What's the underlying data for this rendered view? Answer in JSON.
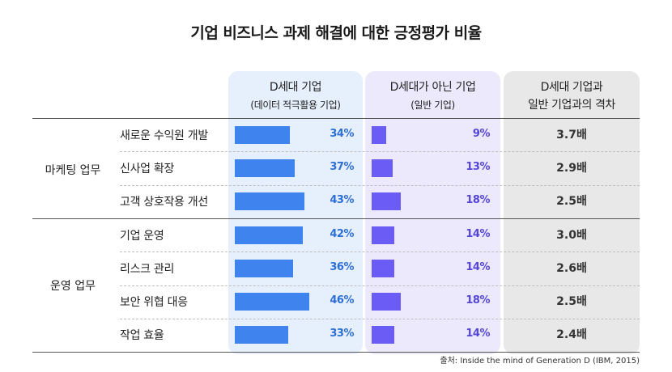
{
  "title": "기업 비즈니스 과제 해결에 대한 긍정평가 비율",
  "headers": {
    "d_line1": "D세대 기업",
    "d_line2": "(데이터 적극활용 기업)",
    "n_line1": "D세대가 아닌 기업",
    "n_line2": "(일반 기업)",
    "g_line1": "D세대 기업과",
    "g_line2": "일반 기업과의 격차"
  },
  "groups": [
    "마케팅 업무",
    "운영 업무"
  ],
  "chart_data": {
    "type": "bar",
    "title": "기업 비즈니스 과제 해결에 대한 긍정평가 비율",
    "categories": [
      "새로운 수익원 개발",
      "신사업 확장",
      "고객 상호작용 개선",
      "기업 운영",
      "리스크 관리",
      "보안 위협 대응",
      "작업 효율"
    ],
    "category_groups": [
      "마케팅 업무",
      "마케팅 업무",
      "마케팅 업무",
      "운영 업무",
      "운영 업무",
      "운영 업무",
      "운영 업무"
    ],
    "series": [
      {
        "name": "D세대 기업",
        "values": [
          34,
          37,
          43,
          42,
          36,
          46,
          33
        ],
        "labels": [
          "34%",
          "37%",
          "43%",
          "42%",
          "36%",
          "46%",
          "33%"
        ],
        "color": "#3e83ee"
      },
      {
        "name": "D세대가 아닌 기업",
        "values": [
          9,
          13,
          18,
          14,
          14,
          18,
          14
        ],
        "labels": [
          "9%",
          "13%",
          "18%",
          "14%",
          "14%",
          "18%",
          "14%"
        ],
        "color": "#6b5cf5"
      }
    ],
    "gap_labels": [
      "3.7배",
      "2.9배",
      "2.5배",
      "3.0배",
      "2.6배",
      "2.5배",
      "2.4배"
    ],
    "ylim": [
      0,
      100
    ],
    "unit": "%"
  },
  "source": "출처: Inside the mind of Generation D (IBM, 2015)"
}
